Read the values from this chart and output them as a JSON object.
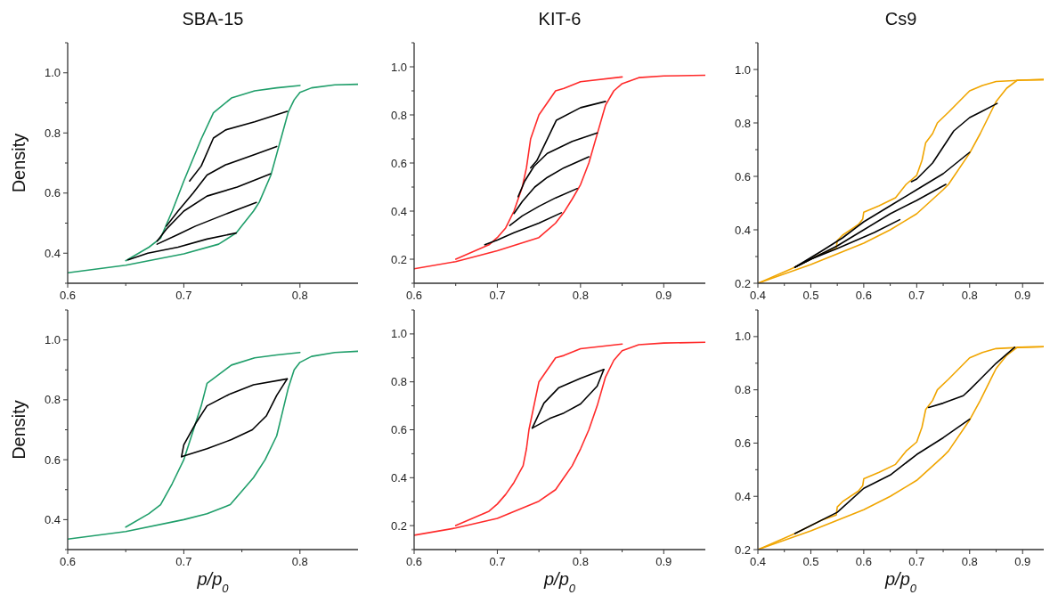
{
  "chart_data": [
    {
      "type": "line",
      "title": "SBA-15",
      "ylabel": "Density",
      "xlim": [
        0.6,
        0.85
      ],
      "ylim": [
        0.3,
        1.1
      ],
      "xticks": [
        0.6,
        {
          "value": 0.65,
          "label": null
        },
        0.7,
        {
          "value": 0.75,
          "label": null
        },
        0.8
      ],
      "yticks": [
        {
          "value": 0.3,
          "label": null
        },
        0.4,
        {
          "value": 0.5,
          "label": null
        },
        0.6,
        {
          "value": 0.7,
          "label": null
        },
        0.8,
        {
          "value": 0.9,
          "label": null
        },
        "1.0",
        {
          "value": 1.1,
          "label": null
        }
      ],
      "series": [
        {
          "color": "#1f9e6a",
          "x": [
            0.6,
            0.65,
            0.7,
            0.73,
            0.745,
            0.76,
            0.765,
            0.775,
            0.78,
            0.785,
            0.79,
            0.795,
            0.8,
            0.81,
            0.83,
            0.85
          ],
          "values": [
            0.335,
            0.36,
            0.398,
            0.43,
            0.467,
            0.54,
            0.57,
            0.66,
            0.73,
            0.8,
            0.87,
            0.91,
            0.935,
            0.95,
            0.96,
            0.962
          ]
        },
        {
          "color": "#1f9e6a",
          "x": [
            0.8,
            0.78,
            0.761,
            0.741,
            0.7255,
            0.715,
            0.7,
            0.69,
            0.68,
            0.67,
            0.65
          ],
          "values": [
            0.958,
            0.95,
            0.94,
            0.916,
            0.867,
            0.78,
            0.64,
            0.54,
            0.45,
            0.42,
            0.375
          ]
        },
        {
          "color": "#000000",
          "x": [
            0.789,
            0.761,
            0.736,
            0.7255,
            0.715,
            0.705
          ],
          "values": [
            0.872,
            0.837,
            0.81,
            0.783,
            0.69,
            0.64
          ]
        },
        {
          "color": "#000000",
          "x": [
            0.78,
            0.761,
            0.736,
            0.72,
            0.708,
            0.695,
            0.685
          ],
          "values": [
            0.755,
            0.728,
            0.694,
            0.66,
            0.6,
            0.54,
            0.49
          ]
        },
        {
          "color": "#000000",
          "x": [
            0.7745,
            0.746,
            0.72,
            0.7,
            0.685,
            0.677
          ],
          "values": [
            0.664,
            0.62,
            0.59,
            0.54,
            0.48,
            0.44
          ]
        },
        {
          "color": "#000000",
          "x": [
            0.7625,
            0.736,
            0.71,
            0.695,
            0.677
          ],
          "values": [
            0.569,
            0.53,
            0.49,
            0.462,
            0.43
          ]
        },
        {
          "color": "#000000",
          "x": [
            0.745,
            0.72,
            0.695,
            0.669,
            0.652
          ],
          "values": [
            0.467,
            0.447,
            0.42,
            0.4,
            0.378
          ]
        }
      ]
    },
    {
      "type": "line",
      "title": "KIT-6",
      "xlim": [
        0.6,
        0.95
      ],
      "ylim": [
        0.1,
        1.1
      ],
      "xticks": [
        0.6,
        {
          "value": 0.65,
          "label": null
        },
        0.7,
        {
          "value": 0.75,
          "label": null
        },
        0.8,
        {
          "value": 0.85,
          "label": null
        },
        0.9
      ],
      "yticks": [
        {
          "value": 0.1,
          "label": null
        },
        0.2,
        {
          "value": 0.3,
          "label": null
        },
        0.4,
        {
          "value": 0.5,
          "label": null
        },
        0.6,
        {
          "value": 0.7,
          "label": null
        },
        0.8,
        {
          "value": 0.9,
          "label": null
        },
        "1.0",
        {
          "value": 1.1,
          "label": null
        }
      ],
      "series": [
        {
          "color": "#ff2a2a",
          "x": [
            0.6,
            0.65,
            0.7,
            0.75,
            0.77,
            0.78,
            0.79,
            0.8,
            0.81,
            0.82,
            0.83,
            0.84,
            0.85,
            0.87,
            0.9,
            0.95
          ],
          "values": [
            0.16,
            0.19,
            0.235,
            0.29,
            0.35,
            0.395,
            0.45,
            0.51,
            0.6,
            0.72,
            0.84,
            0.9,
            0.93,
            0.955,
            0.962,
            0.965
          ]
        },
        {
          "color": "#ff2a2a",
          "x": [
            0.85,
            0.8,
            0.78,
            0.77,
            0.76,
            0.75,
            0.74,
            0.735,
            0.73,
            0.72,
            0.71,
            0.7,
            0.69,
            0.65
          ],
          "values": [
            0.958,
            0.938,
            0.91,
            0.9,
            0.85,
            0.8,
            0.7,
            0.58,
            0.5,
            0.4,
            0.33,
            0.29,
            0.26,
            0.2
          ]
        },
        {
          "color": "#000000",
          "x": [
            0.83,
            0.8,
            0.771,
            0.758,
            0.7475,
            0.74
          ],
          "values": [
            0.856,
            0.83,
            0.778,
            0.685,
            0.61,
            0.58
          ]
        },
        {
          "color": "#000000",
          "x": [
            0.82,
            0.79,
            0.76,
            0.744,
            0.733,
            0.725
          ],
          "values": [
            0.725,
            0.69,
            0.64,
            0.586,
            0.525,
            0.46
          ]
        },
        {
          "color": "#000000",
          "x": [
            0.81,
            0.78,
            0.76,
            0.745,
            0.73,
            0.72
          ],
          "values": [
            0.626,
            0.58,
            0.54,
            0.5,
            0.44,
            0.39
          ]
        },
        {
          "color": "#000000",
          "x": [
            0.796,
            0.77,
            0.75,
            0.73,
            0.715
          ],
          "values": [
            0.494,
            0.455,
            0.42,
            0.38,
            0.34
          ]
        },
        {
          "color": "#000000",
          "x": [
            0.777,
            0.75,
            0.72,
            0.7,
            0.685
          ],
          "values": [
            0.393,
            0.35,
            0.31,
            0.28,
            0.26
          ]
        }
      ]
    },
    {
      "type": "line",
      "title": "Cs9",
      "xlim": [
        0.4,
        0.94
      ],
      "ylim": [
        0.2,
        1.1
      ],
      "xticks": [
        0.4,
        {
          "value": 0.45,
          "label": null
        },
        0.5,
        {
          "value": 0.55,
          "label": null
        },
        0.6,
        {
          "value": 0.65,
          "label": null
        },
        0.7,
        {
          "value": 0.75,
          "label": null
        },
        0.8,
        {
          "value": 0.85,
          "label": null
        },
        0.9
      ],
      "yticks": [
        0.2,
        {
          "value": 0.3,
          "label": null
        },
        0.4,
        {
          "value": 0.5,
          "label": null
        },
        0.6,
        {
          "value": 0.7,
          "label": null
        },
        0.8,
        {
          "value": 0.9,
          "label": null
        },
        "1.0",
        {
          "value": 1.1,
          "label": null
        }
      ],
      "series": [
        {
          "color": "#f0a500",
          "x": [
            0.4,
            0.5,
            0.6,
            0.65,
            0.7,
            0.75,
            0.76,
            0.8,
            0.82,
            0.84,
            0.85,
            0.87,
            0.89,
            0.94
          ],
          "values": [
            0.2,
            0.27,
            0.35,
            0.4,
            0.46,
            0.55,
            0.57,
            0.687,
            0.76,
            0.84,
            0.88,
            0.93,
            0.96,
            0.962
          ]
        },
        {
          "color": "#f0a500",
          "x": [
            0.94,
            0.9,
            0.85,
            0.824,
            0.8,
            0.78,
            0.76,
            0.739,
            0.73,
            0.717,
            0.71,
            0.7,
            0.68,
            0.66,
            0.629,
            0.6,
            0.598,
            0.59,
            0.56,
            0.55,
            0.548,
            0.52,
            0.5,
            0.47,
            0.4
          ],
          "values": [
            0.962,
            0.96,
            0.955,
            0.94,
            0.92,
            0.88,
            0.84,
            0.8,
            0.76,
            0.726,
            0.66,
            0.604,
            0.57,
            0.52,
            0.49,
            0.466,
            0.44,
            0.42,
            0.38,
            0.36,
            0.33,
            0.31,
            0.29,
            0.26,
            0.2
          ]
        },
        {
          "color": "#000000",
          "x": [
            0.852,
            0.82,
            0.8,
            0.77,
            0.75,
            0.73,
            0.7,
            0.69
          ],
          "values": [
            0.873,
            0.84,
            0.82,
            0.77,
            0.71,
            0.65,
            0.59,
            0.58
          ]
        },
        {
          "color": "#000000",
          "x": [
            0.8,
            0.75,
            0.7,
            0.65,
            0.6,
            0.56,
            0.52,
            0.47
          ],
          "values": [
            0.69,
            0.61,
            0.55,
            0.49,
            0.43,
            0.37,
            0.32,
            0.26
          ]
        },
        {
          "color": "#000000",
          "x": [
            0.755,
            0.7,
            0.65,
            0.6,
            0.55,
            0.5,
            0.47
          ],
          "values": [
            0.57,
            0.51,
            0.46,
            0.4,
            0.34,
            0.29,
            0.26
          ]
        },
        {
          "color": "#000000",
          "x": [
            0.668,
            0.62,
            0.55,
            0.5,
            0.47
          ],
          "values": [
            0.438,
            0.39,
            0.33,
            0.29,
            0.26
          ]
        }
      ]
    },
    {
      "type": "line",
      "xlabel": "p/p$_{0}$",
      "ylabel": "Density",
      "xlim": [
        0.6,
        0.85
      ],
      "ylim": [
        0.3,
        1.1
      ],
      "xticks": [
        0.6,
        {
          "value": 0.65,
          "label": null
        },
        0.7,
        {
          "value": 0.75,
          "label": null
        },
        0.8
      ],
      "yticks": [
        {
          "value": 0.3,
          "label": null
        },
        0.4,
        {
          "value": 0.5,
          "label": null
        },
        0.6,
        {
          "value": 0.7,
          "label": null
        },
        0.8,
        {
          "value": 0.9,
          "label": null
        },
        "1.0",
        {
          "value": 1.1,
          "label": null
        }
      ],
      "series": [
        {
          "color": "#1f9e6a",
          "x": [
            0.6,
            0.65,
            0.7,
            0.72,
            0.74,
            0.76,
            0.77,
            0.78,
            0.785,
            0.79,
            0.795,
            0.8,
            0.81,
            0.83,
            0.85
          ],
          "values": [
            0.335,
            0.36,
            0.4,
            0.42,
            0.45,
            0.54,
            0.6,
            0.68,
            0.76,
            0.84,
            0.9,
            0.925,
            0.945,
            0.958,
            0.962
          ]
        },
        {
          "color": "#1f9e6a",
          "x": [
            0.8,
            0.78,
            0.761,
            0.741,
            0.72,
            0.715,
            0.7,
            0.69,
            0.68,
            0.67,
            0.65
          ],
          "values": [
            0.958,
            0.95,
            0.94,
            0.916,
            0.855,
            0.78,
            0.6,
            0.52,
            0.45,
            0.42,
            0.375
          ]
        },
        {
          "color": "#000000",
          "x": [
            0.789,
            0.76,
            0.74,
            0.72,
            0.71,
            0.7,
            0.698
          ],
          "values": [
            0.87,
            0.85,
            0.82,
            0.78,
            0.72,
            0.65,
            0.61
          ]
        },
        {
          "color": "#000000",
          "x": [
            0.698,
            0.72,
            0.741,
            0.759,
            0.771,
            0.78,
            0.789
          ],
          "values": [
            0.61,
            0.637,
            0.667,
            0.7,
            0.746,
            0.815,
            0.87
          ]
        }
      ]
    },
    {
      "type": "line",
      "xlabel": "p/p$_{0}$",
      "xlim": [
        0.6,
        0.95
      ],
      "ylim": [
        0.1,
        1.1
      ],
      "xticks": [
        0.6,
        {
          "value": 0.65,
          "label": null
        },
        0.7,
        {
          "value": 0.75,
          "label": null
        },
        0.8,
        {
          "value": 0.85,
          "label": null
        },
        0.9
      ],
      "yticks": [
        {
          "value": 0.1,
          "label": null
        },
        0.2,
        {
          "value": 0.3,
          "label": null
        },
        0.4,
        {
          "value": 0.5,
          "label": null
        },
        0.6,
        {
          "value": 0.7,
          "label": null
        },
        0.8,
        {
          "value": 0.9,
          "label": null
        },
        "1.0",
        {
          "value": 1.1,
          "label": null
        }
      ],
      "series": [
        {
          "color": "#ff2a2a",
          "x": [
            0.6,
            0.65,
            0.7,
            0.75,
            0.77,
            0.78,
            0.79,
            0.8,
            0.81,
            0.82,
            0.83,
            0.84,
            0.85,
            0.87,
            0.9,
            0.95
          ],
          "values": [
            0.16,
            0.19,
            0.23,
            0.302,
            0.35,
            0.4,
            0.45,
            0.52,
            0.6,
            0.7,
            0.82,
            0.89,
            0.93,
            0.955,
            0.962,
            0.965
          ]
        },
        {
          "color": "#ff2a2a",
          "x": [
            0.85,
            0.8,
            0.78,
            0.77,
            0.76,
            0.75,
            0.738,
            0.735,
            0.731,
            0.72,
            0.71,
            0.7,
            0.69,
            0.65
          ],
          "values": [
            0.958,
            0.938,
            0.91,
            0.9,
            0.85,
            0.8,
            0.6,
            0.52,
            0.45,
            0.38,
            0.33,
            0.29,
            0.26,
            0.2
          ]
        },
        {
          "color": "#000000",
          "x": [
            0.828,
            0.8,
            0.774,
            0.756,
            0.742
          ],
          "values": [
            0.852,
            0.815,
            0.776,
            0.711,
            0.607
          ]
        },
        {
          "color": "#000000",
          "x": [
            0.742,
            0.763,
            0.78,
            0.8,
            0.82,
            0.828
          ],
          "values": [
            0.607,
            0.647,
            0.67,
            0.708,
            0.782,
            0.852
          ]
        }
      ]
    },
    {
      "type": "line",
      "xlabel": "p/p$_{0}$",
      "xlim": [
        0.4,
        0.94
      ],
      "ylim": [
        0.2,
        1.1
      ],
      "xticks": [
        0.4,
        {
          "value": 0.45,
          "label": null
        },
        0.5,
        {
          "value": 0.55,
          "label": null
        },
        0.6,
        {
          "value": 0.65,
          "label": null
        },
        0.7,
        {
          "value": 0.75,
          "label": null
        },
        0.8,
        {
          "value": 0.85,
          "label": null
        },
        0.9
      ],
      "yticks": [
        0.2,
        {
          "value": 0.3,
          "label": null
        },
        0.4,
        {
          "value": 0.5,
          "label": null
        },
        0.6,
        {
          "value": 0.7,
          "label": null
        },
        0.8,
        {
          "value": 0.9,
          "label": null
        },
        "1.0",
        {
          "value": 1.1,
          "label": null
        }
      ],
      "series": [
        {
          "color": "#f0a500",
          "x": [
            0.4,
            0.5,
            0.6,
            0.65,
            0.7,
            0.75,
            0.76,
            0.8,
            0.82,
            0.84,
            0.85,
            0.87,
            0.89,
            0.94
          ],
          "values": [
            0.2,
            0.27,
            0.35,
            0.4,
            0.46,
            0.55,
            0.57,
            0.687,
            0.76,
            0.84,
            0.88,
            0.93,
            0.96,
            0.962
          ]
        },
        {
          "color": "#f0a500",
          "x": [
            0.94,
            0.9,
            0.85,
            0.824,
            0.8,
            0.78,
            0.76,
            0.739,
            0.73,
            0.717,
            0.71,
            0.7,
            0.68,
            0.66,
            0.629,
            0.6,
            0.598,
            0.59,
            0.56,
            0.55,
            0.548,
            0.52,
            0.5,
            0.47,
            0.4
          ],
          "values": [
            0.962,
            0.96,
            0.955,
            0.94,
            0.92,
            0.88,
            0.84,
            0.8,
            0.76,
            0.726,
            0.66,
            0.604,
            0.57,
            0.52,
            0.49,
            0.466,
            0.44,
            0.42,
            0.38,
            0.36,
            0.33,
            0.31,
            0.29,
            0.26,
            0.2
          ]
        },
        {
          "color": "#000000",
          "x": [
            0.7225,
            0.75,
            0.788,
            0.8,
            0.82,
            0.85,
            0.885
          ],
          "values": [
            0.734,
            0.75,
            0.778,
            0.8,
            0.84,
            0.9,
            0.96
          ]
        },
        {
          "color": "#000000",
          "x": [
            0.47,
            0.55,
            0.6,
            0.65,
            0.7,
            0.75,
            0.8
          ],
          "values": [
            0.26,
            0.34,
            0.43,
            0.48,
            0.557,
            0.62,
            0.69
          ]
        }
      ]
    }
  ]
}
